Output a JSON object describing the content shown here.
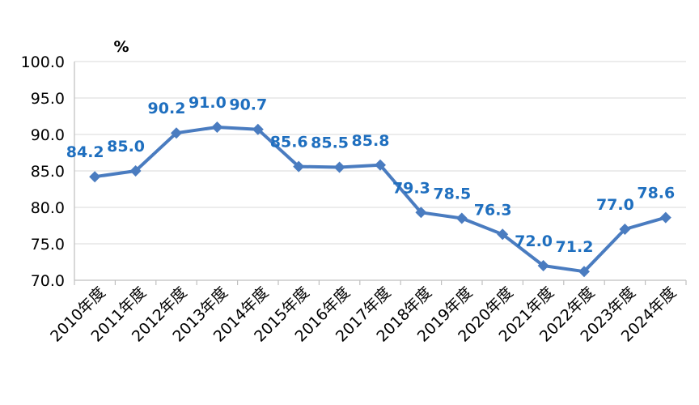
{
  "chart_data": {
    "type": "line",
    "unit_label": "%",
    "categories": [
      "2010年度",
      "2011年度",
      "2012年度",
      "2013年度",
      "2014年度",
      "2015年度",
      "2016年度",
      "2017年度",
      "2018年度",
      "2019年度",
      "2020年度",
      "2021年度",
      "2022年度",
      "2023年度",
      "2024年度"
    ],
    "series": [
      {
        "values": [
          84.2,
          85.0,
          90.2,
          91.0,
          90.7,
          85.6,
          85.5,
          85.8,
          79.3,
          78.5,
          76.3,
          72.0,
          71.2,
          77.0,
          78.6
        ],
        "labels": [
          "84.2",
          "85.0",
          "90.2",
          "91.0",
          "90.7",
          "85.6",
          "85.5",
          "85.8",
          "79.3",
          "78.5",
          "76.3",
          "72.0",
          "71.2",
          "77.0",
          "78.6"
        ]
      }
    ],
    "yticks": [
      "70.0",
      "75.0",
      "80.0",
      "85.0",
      "90.0",
      "95.0",
      "100.0"
    ],
    "ylim": [
      70,
      100
    ],
    "grid": true,
    "colors": {
      "line": "#4a7cc0",
      "labels": "#1f6fbf",
      "grid": "#d9d9d9"
    }
  }
}
